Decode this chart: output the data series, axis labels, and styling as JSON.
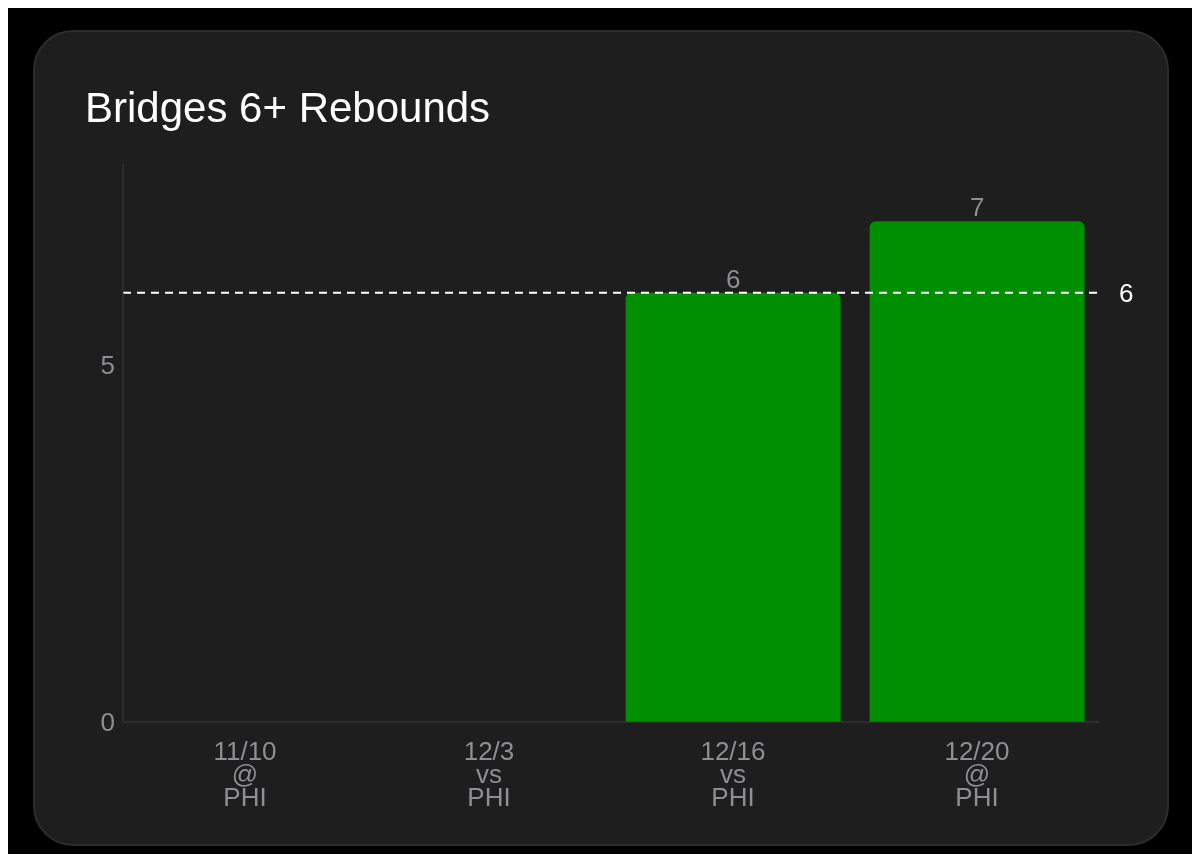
{
  "chart_data": {
    "type": "bar",
    "title": "Bridges 6+ Rebounds",
    "categories": [
      "11/10\n@\nPHI",
      "12/3\nvs\nPHI",
      "12/16\nvs\nPHI",
      "12/20\n@\nPHI"
    ],
    "values": [
      null,
      null,
      6,
      7
    ],
    "value_labels": [
      null,
      null,
      "6",
      "7"
    ],
    "color": "#008f00",
    "ylim": [
      0,
      7.8
    ],
    "yticks": [
      0,
      5
    ],
    "grid": false,
    "legend": false,
    "ref_lines": [
      {
        "axis": "y",
        "value": 6,
        "label": "6",
        "color": "#ffffff",
        "line_style": "dashed"
      }
    ]
  }
}
